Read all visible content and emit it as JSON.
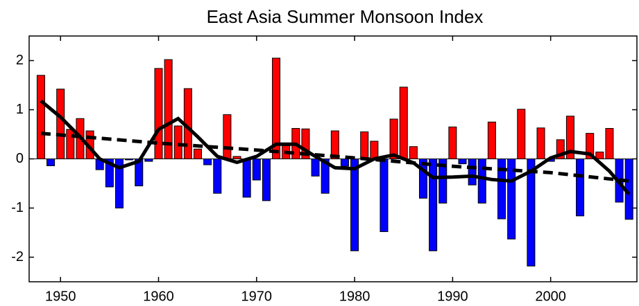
{
  "chart_data": {
    "type": "bar",
    "title": "East Asia Summer Monsoon Index",
    "x": [
      1948,
      1949,
      1950,
      1951,
      1952,
      1953,
      1954,
      1955,
      1956,
      1957,
      1958,
      1959,
      1960,
      1961,
      1962,
      1963,
      1964,
      1965,
      1966,
      1967,
      1968,
      1969,
      1970,
      1971,
      1972,
      1973,
      1974,
      1975,
      1976,
      1977,
      1978,
      1979,
      1980,
      1981,
      1982,
      1983,
      1984,
      1985,
      1986,
      1987,
      1988,
      1989,
      1990,
      1991,
      1992,
      1993,
      1994,
      1995,
      1996,
      1997,
      1998,
      1999,
      2000,
      2001,
      2002,
      2003,
      2004,
      2005,
      2006,
      2007,
      2008
    ],
    "values": [
      1.7,
      -0.14,
      1.42,
      0.6,
      0.82,
      0.57,
      -0.22,
      -0.57,
      -1.0,
      -0.02,
      -0.55,
      -0.05,
      1.84,
      2.02,
      0.67,
      1.43,
      0.2,
      -0.12,
      -0.7,
      0.9,
      0.05,
      -0.78,
      -0.43,
      -0.85,
      2.05,
      0.27,
      0.62,
      0.61,
      -0.35,
      -0.7,
      0.57,
      -0.15,
      -1.87,
      0.55,
      0.36,
      -1.48,
      0.81,
      1.46,
      0.25,
      -0.8,
      -1.87,
      -0.9,
      0.65,
      -0.1,
      -0.53,
      -0.9,
      0.75,
      -1.22,
      -1.63,
      1.01,
      -2.18,
      0.63,
      -0.05,
      0.39,
      0.87,
      -1.16,
      0.52,
      0.14,
      0.62,
      -0.88,
      -1.23
    ],
    "positive_color": "#ff0000",
    "negative_color": "#0000ff",
    "lines": [
      {
        "style": "solid",
        "color": "#000000",
        "x": [
          1948,
          1950,
          1952,
          1954,
          1956,
          1958,
          1960,
          1962,
          1964,
          1966,
          1968,
          1970,
          1972,
          1974,
          1976,
          1978,
          1980,
          1982,
          1984,
          1986,
          1988,
          1990,
          1992,
          1994,
          1996,
          1998,
          2000,
          2002,
          2004,
          2006,
          2008
        ],
        "values": [
          1.18,
          0.85,
          0.45,
          0.0,
          -0.18,
          -0.05,
          0.6,
          0.82,
          0.45,
          0.05,
          -0.07,
          0.05,
          0.3,
          0.3,
          0.05,
          -0.18,
          -0.2,
          0.0,
          0.08,
          -0.08,
          -0.38,
          -0.37,
          -0.35,
          -0.42,
          -0.45,
          -0.25,
          0.02,
          0.15,
          0.1,
          -0.25,
          -0.72
        ]
      },
      {
        "style": "dashed",
        "color": "#000000",
        "x": [
          1948,
          1960,
          1970,
          1980,
          1990,
          2000,
          2008
        ],
        "values": [
          0.52,
          0.32,
          0.18,
          0.02,
          -0.15,
          -0.28,
          -0.45
        ]
      }
    ],
    "xlim": [
      1946.8,
      2008.8
    ],
    "ylim": [
      -2.5,
      2.5
    ],
    "xticks": [
      1950,
      1960,
      1970,
      1980,
      1990,
      2000
    ],
    "yticks": [
      -2,
      -1,
      0,
      1,
      2
    ],
    "zero_line": true
  }
}
